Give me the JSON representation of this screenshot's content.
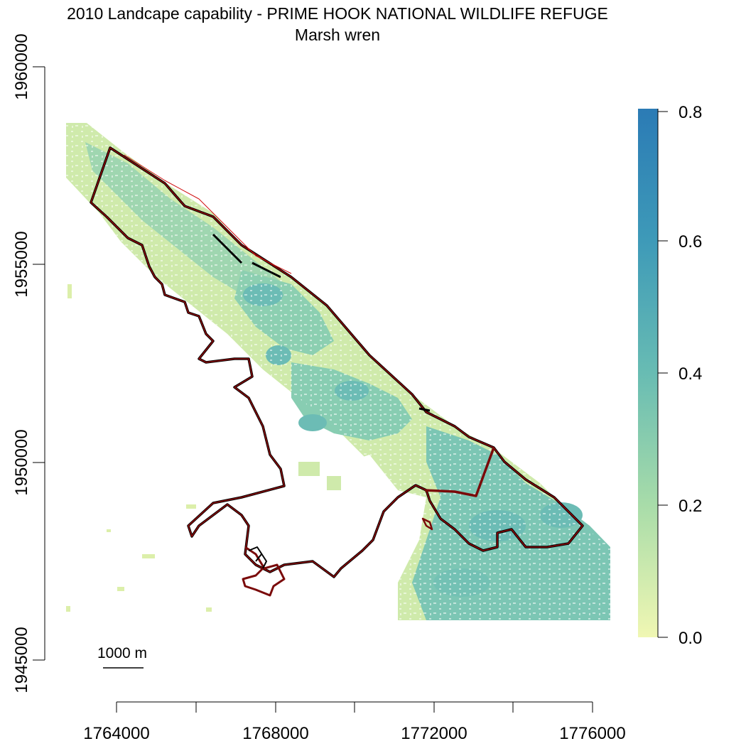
{
  "title": {
    "line1": "2010 Landcape capability - PRIME HOOK NATIONAL WILDLIFE REFUGE",
    "line2": "Marsh wren"
  },
  "x_axis": {
    "ticks": [
      "1764000",
      "1768000",
      "1772000",
      "1776000"
    ]
  },
  "y_axis": {
    "ticks": [
      "1945000",
      "1950000",
      "1955000",
      "1960000"
    ]
  },
  "legend": {
    "ticks": [
      "0.0",
      "0.2",
      "0.4",
      "0.6",
      "0.8"
    ],
    "colors": [
      "#f0f7b3",
      "#a8dca9",
      "#68bcb3",
      "#3e9ab8",
      "#2b7bb5"
    ],
    "min": 0.0,
    "max": 0.8
  },
  "scale_bar": {
    "label": "1000 m"
  },
  "colors": {
    "refuge_boundary": "#7a0a0a",
    "boundary_outline": "#000000",
    "capability_light": "#d9eea9",
    "capability_mid": "#8fd1b0",
    "capability_high": "#5fb3b8"
  }
}
